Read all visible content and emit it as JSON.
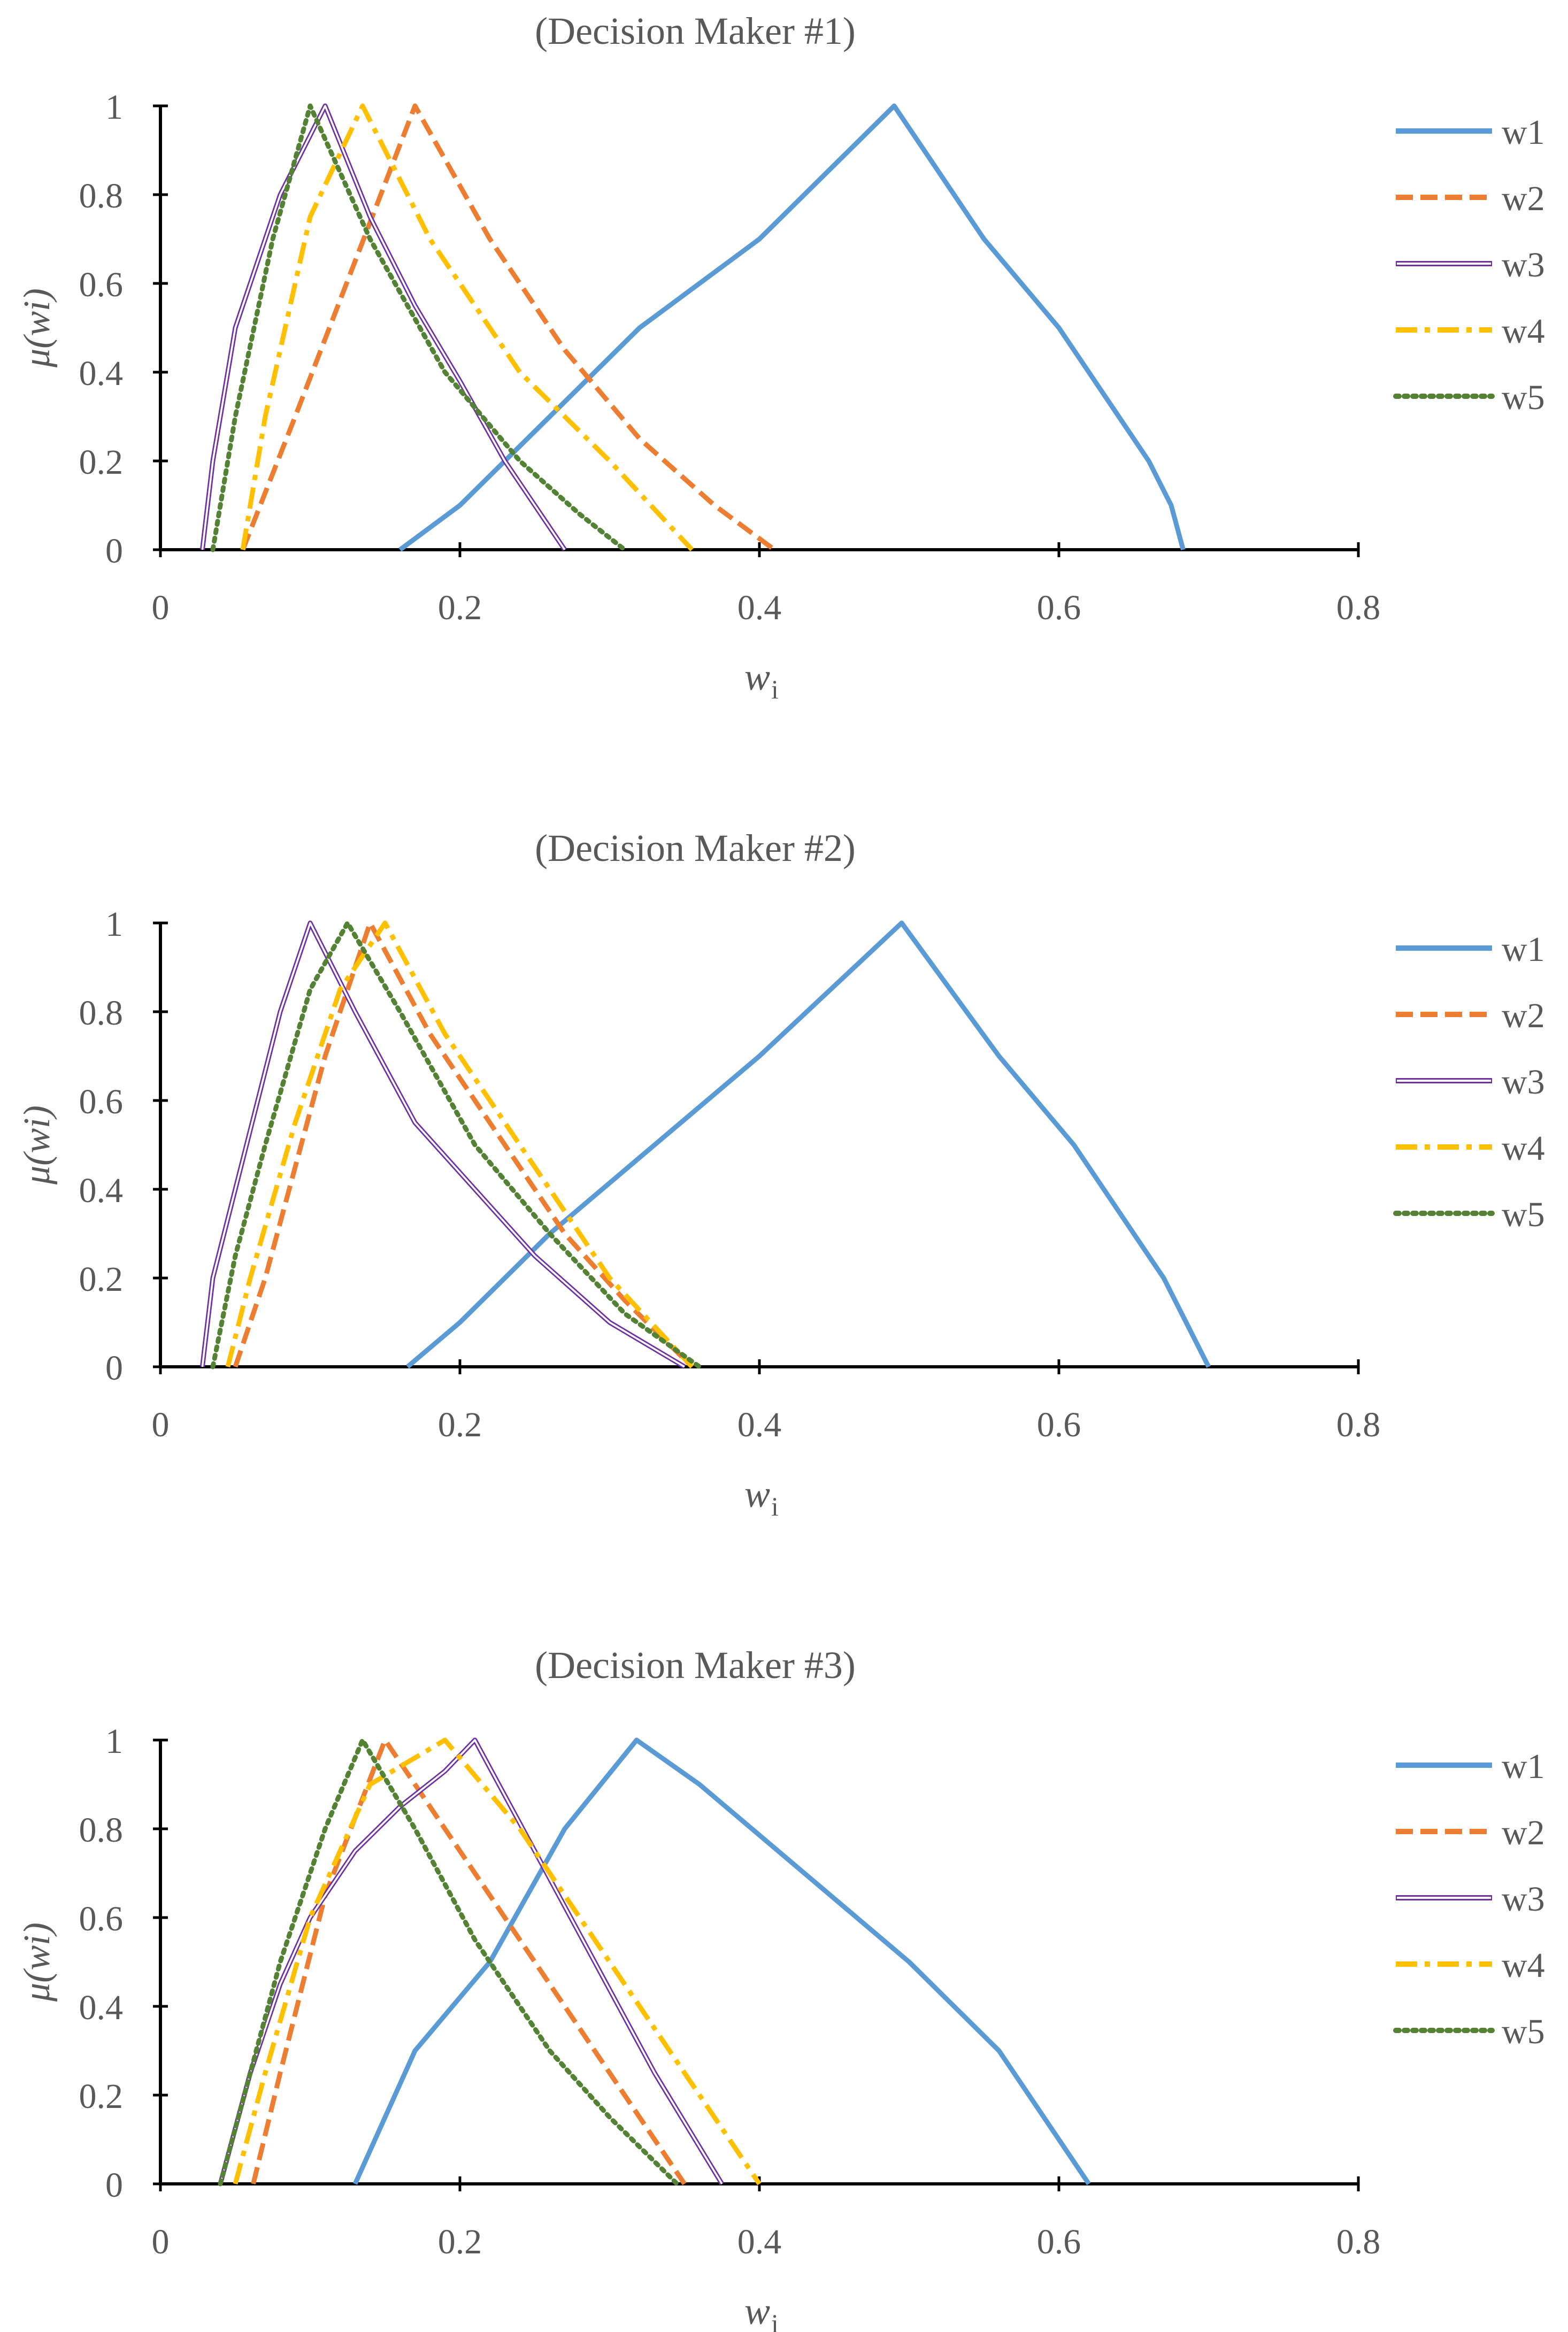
{
  "chart_data": [
    {
      "type": "line",
      "title": "(Decision Maker #1)",
      "xlabel": "w",
      "xlabel_sub": "i",
      "ylabel": "μ(wi)",
      "xlim": [
        0,
        0.8
      ],
      "ylim": [
        0,
        1
      ],
      "xticks": [
        "0",
        "0.2",
        "0.4",
        "0.6",
        "0.8"
      ],
      "yticks": [
        "0",
        "0.2",
        "0.4",
        "0.6",
        "0.8",
        "1"
      ],
      "legend": "right",
      "series": [
        {
          "name": "w1",
          "x": [
            0.16,
            0.2,
            0.26,
            0.32,
            0.4,
            0.49,
            0.55,
            0.6,
            0.64,
            0.66,
            0.675,
            0.683
          ],
          "y": [
            0,
            0.1,
            0.3,
            0.5,
            0.7,
            1.0,
            0.7,
            0.5,
            0.3,
            0.2,
            0.1,
            0
          ]
        },
        {
          "name": "w2",
          "x": [
            0.055,
            0.09,
            0.13,
            0.17,
            0.22,
            0.27,
            0.32,
            0.37,
            0.41
          ],
          "y": [
            0,
            0.3,
            0.65,
            1.0,
            0.7,
            0.45,
            0.25,
            0.1,
            0
          ]
        },
        {
          "name": "w3",
          "x": [
            0.028,
            0.035,
            0.05,
            0.08,
            0.11,
            0.14,
            0.17,
            0.2,
            0.23,
            0.25,
            0.27
          ],
          "y": [
            0,
            0.2,
            0.5,
            0.8,
            1.0,
            0.75,
            0.55,
            0.38,
            0.2,
            0.1,
            0
          ]
        },
        {
          "name": "w4",
          "x": [
            0.055,
            0.07,
            0.1,
            0.135,
            0.18,
            0.24,
            0.3,
            0.355
          ],
          "y": [
            0,
            0.3,
            0.75,
            1.0,
            0.7,
            0.4,
            0.2,
            0
          ]
        },
        {
          "name": "w5",
          "x": [
            0.035,
            0.05,
            0.075,
            0.1,
            0.14,
            0.19,
            0.24,
            0.28,
            0.31
          ],
          "y": [
            0,
            0.3,
            0.7,
            1.0,
            0.7,
            0.4,
            0.2,
            0.08,
            0
          ]
        }
      ]
    },
    {
      "type": "line",
      "title": "(Decision Maker #2)",
      "xlabel": "w",
      "xlabel_sub": "i",
      "ylabel": "μ(wi)",
      "xlim": [
        0,
        0.8
      ],
      "ylim": [
        0,
        1
      ],
      "xticks": [
        "0",
        "0.2",
        "0.4",
        "0.6",
        "0.8"
      ],
      "yticks": [
        "0",
        "0.2",
        "0.4",
        "0.6",
        "0.8",
        "1"
      ],
      "legend": "right",
      "series": [
        {
          "name": "w1",
          "x": [
            0.165,
            0.2,
            0.26,
            0.33,
            0.4,
            0.495,
            0.56,
            0.61,
            0.65,
            0.67,
            0.7
          ],
          "y": [
            0,
            0.1,
            0.3,
            0.5,
            0.7,
            1.0,
            0.7,
            0.5,
            0.3,
            0.2,
            0
          ]
        },
        {
          "name": "w2",
          "x": [
            0.05,
            0.07,
            0.09,
            0.11,
            0.14,
            0.18,
            0.22,
            0.27,
            0.31,
            0.355
          ],
          "y": [
            0,
            0.2,
            0.45,
            0.7,
            1.0,
            0.75,
            0.55,
            0.3,
            0.15,
            0
          ]
        },
        {
          "name": "w3",
          "x": [
            0.028,
            0.035,
            0.05,
            0.08,
            0.1,
            0.13,
            0.17,
            0.21,
            0.25,
            0.3,
            0.35
          ],
          "y": [
            0,
            0.2,
            0.4,
            0.8,
            1.0,
            0.8,
            0.55,
            0.4,
            0.25,
            0.1,
            0
          ]
        },
        {
          "name": "w4",
          "x": [
            0.045,
            0.06,
            0.09,
            0.12,
            0.15,
            0.19,
            0.24,
            0.3,
            0.355
          ],
          "y": [
            0,
            0.2,
            0.55,
            0.85,
            1.0,
            0.75,
            0.5,
            0.2,
            0
          ]
        },
        {
          "name": "w5",
          "x": [
            0.035,
            0.05,
            0.07,
            0.1,
            0.125,
            0.16,
            0.21,
            0.26,
            0.31,
            0.36
          ],
          "y": [
            0,
            0.25,
            0.5,
            0.85,
            1.0,
            0.8,
            0.5,
            0.3,
            0.12,
            0
          ]
        }
      ]
    },
    {
      "type": "line",
      "title": "(Decision Maker #3)",
      "xlabel": "w",
      "xlabel_sub": "i",
      "ylabel": "μ(wi)",
      "xlim": [
        0,
        0.8
      ],
      "ylim": [
        0,
        1
      ],
      "xticks": [
        "0",
        "0.2",
        "0.4",
        "0.6",
        "0.8"
      ],
      "yticks": [
        "0",
        "0.2",
        "0.4",
        "0.6",
        "0.8",
        "1"
      ],
      "legend": "right",
      "series": [
        {
          "name": "w1",
          "x": [
            0.13,
            0.17,
            0.22,
            0.27,
            0.318,
            0.36,
            0.43,
            0.5,
            0.56,
            0.59,
            0.62
          ],
          "y": [
            0,
            0.3,
            0.5,
            0.8,
            1.0,
            0.9,
            0.7,
            0.5,
            0.3,
            0.15,
            0
          ]
        },
        {
          "name": "w2",
          "x": [
            0.062,
            0.08,
            0.11,
            0.15,
            0.2,
            0.25,
            0.3,
            0.35
          ],
          "y": [
            0,
            0.25,
            0.65,
            1.0,
            0.75,
            0.5,
            0.25,
            0
          ]
        },
        {
          "name": "w3",
          "x": [
            0.04,
            0.06,
            0.08,
            0.1,
            0.13,
            0.16,
            0.19,
            0.21,
            0.25,
            0.29,
            0.33,
            0.375
          ],
          "y": [
            0,
            0.25,
            0.45,
            0.6,
            0.75,
            0.85,
            0.93,
            1.0,
            0.75,
            0.5,
            0.25,
            0
          ]
        },
        {
          "name": "w4",
          "x": [
            0.05,
            0.07,
            0.1,
            0.14,
            0.19,
            0.24,
            0.3,
            0.35,
            0.4
          ],
          "y": [
            0,
            0.25,
            0.6,
            0.9,
            1.0,
            0.8,
            0.5,
            0.25,
            0
          ]
        },
        {
          "name": "w5",
          "x": [
            0.04,
            0.06,
            0.08,
            0.11,
            0.135,
            0.17,
            0.21,
            0.26,
            0.3,
            0.345
          ],
          "y": [
            0,
            0.25,
            0.5,
            0.8,
            1.0,
            0.8,
            0.55,
            0.3,
            0.15,
            0
          ]
        }
      ]
    }
  ],
  "series_styles": {
    "w1": {
      "color": "#5B9BD5",
      "dash": "solid"
    },
    "w2": {
      "color": "#ED7D31",
      "dash": "dash"
    },
    "w3": {
      "color": "#7030A0",
      "dash": "double"
    },
    "w4": {
      "color": "#FFC000",
      "dash": "dashdot"
    },
    "w5": {
      "color": "#548235",
      "dash": "dot"
    }
  },
  "axis_color": "#000000",
  "text_color": "#595959"
}
